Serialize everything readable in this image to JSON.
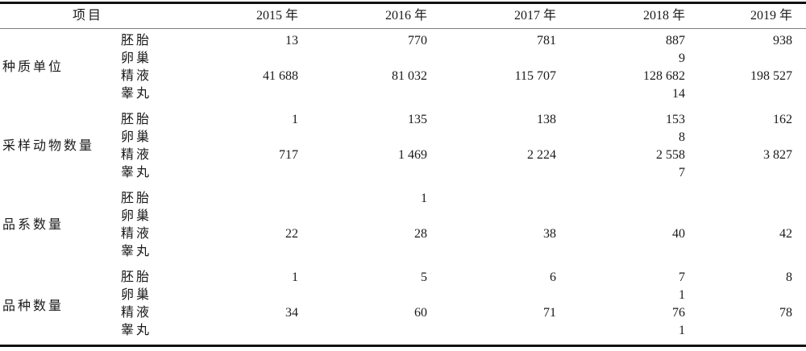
{
  "colors": {
    "background": "#ffffff",
    "text": "#1a1a1a",
    "thick_rule": "#111111",
    "thin_rule": "#7d7d7d"
  },
  "table": {
    "header": {
      "item": "项目",
      "years": [
        "2015 年",
        "2016 年",
        "2017 年",
        "2018 年",
        "2019 年"
      ]
    },
    "groups": [
      {
        "label": "种质单位",
        "rows": [
          {
            "sub": "胚胎",
            "values": [
              "13",
              "770",
              "781",
              "887",
              "938"
            ]
          },
          {
            "sub": "卵巢",
            "values": [
              "",
              "",
              "",
              "9",
              ""
            ]
          },
          {
            "sub": "精液",
            "values": [
              "41 688",
              "81 032",
              "115 707",
              "128 682",
              "198 527"
            ]
          },
          {
            "sub": "睾丸",
            "values": [
              "",
              "",
              "",
              "14",
              ""
            ]
          }
        ]
      },
      {
        "label": "采样动物数量",
        "rows": [
          {
            "sub": "胚胎",
            "values": [
              "1",
              "135",
              "138",
              "153",
              "162"
            ]
          },
          {
            "sub": "卵巢",
            "values": [
              "",
              "",
              "",
              "8",
              ""
            ]
          },
          {
            "sub": "精液",
            "values": [
              "717",
              "1 469",
              "2 224",
              "2 558",
              "3 827"
            ]
          },
          {
            "sub": "睾丸",
            "values": [
              "",
              "",
              "",
              "7",
              ""
            ]
          }
        ]
      },
      {
        "label": "品系数量",
        "rows": [
          {
            "sub": "胚胎",
            "values": [
              "",
              "1",
              "",
              "",
              ""
            ]
          },
          {
            "sub": "卵巢",
            "values": [
              "",
              "",
              "",
              "",
              ""
            ]
          },
          {
            "sub": "精液",
            "values": [
              "22",
              "28",
              "38",
              "40",
              "42"
            ]
          },
          {
            "sub": "睾丸",
            "values": [
              "",
              "",
              "",
              "",
              ""
            ]
          }
        ]
      },
      {
        "label": "品种数量",
        "rows": [
          {
            "sub": "胚胎",
            "values": [
              "1",
              "5",
              "6",
              "7",
              "8"
            ]
          },
          {
            "sub": "卵巢",
            "values": [
              "",
              "",
              "",
              "1",
              ""
            ]
          },
          {
            "sub": "精液",
            "values": [
              "34",
              "60",
              "71",
              "76",
              "78"
            ]
          },
          {
            "sub": "睾丸",
            "values": [
              "",
              "",
              "",
              "1",
              ""
            ]
          }
        ]
      }
    ]
  }
}
